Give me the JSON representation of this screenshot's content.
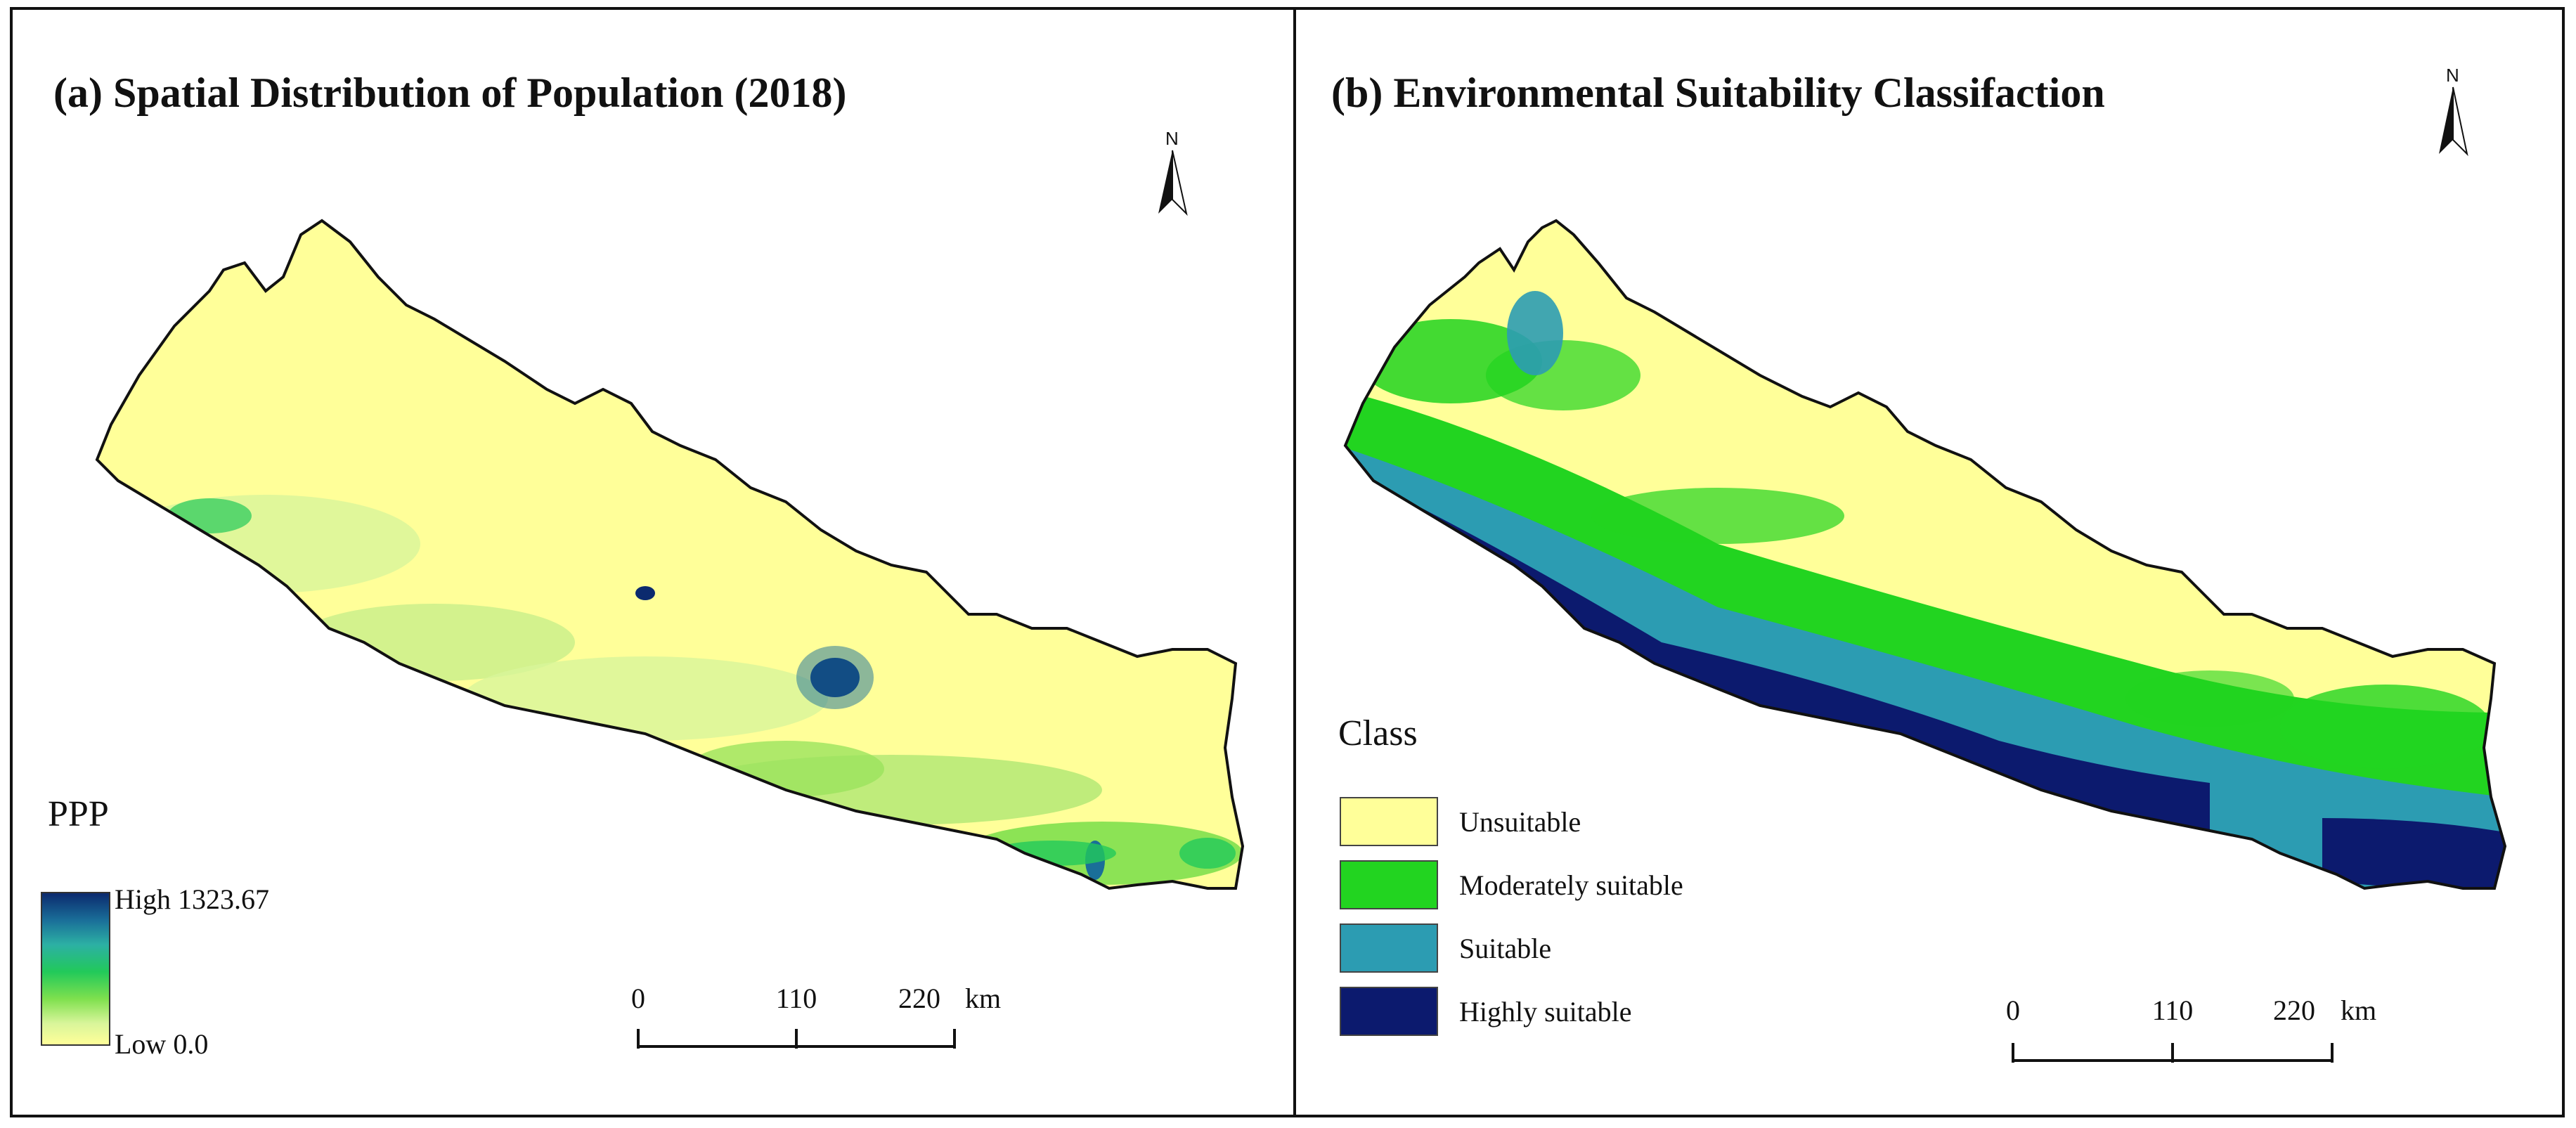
{
  "panel_a": {
    "title": "(a) Spatial Distribution of Population (2018)",
    "north_label": "N",
    "legend": {
      "title": "PPP",
      "high_label": "High 1323.67",
      "low_label": "Low 0.0",
      "colors": [
        "#0b2a6e",
        "#1a6f99",
        "#2cb0a4",
        "#22c95a",
        "#7fe04e",
        "#ffff99"
      ]
    },
    "scale_bar": {
      "ticks": [
        "0",
        "110",
        "220"
      ],
      "unit": "km"
    }
  },
  "panel_b": {
    "title": "(b) Environmental Suitability Classifaction",
    "north_label": "N",
    "legend": {
      "title": "Class",
      "classes": [
        {
          "label": "Unsuitable",
          "color": "#ffff99"
        },
        {
          "label": "Moderately suitable",
          "color": "#22d420"
        },
        {
          "label": "Suitable",
          "color": "#2c9cb2"
        },
        {
          "label": "Highly suitable",
          "color": "#0c1a6e"
        }
      ]
    },
    "scale_bar": {
      "ticks": [
        "0",
        "110",
        "220"
      ],
      "unit": "km"
    }
  }
}
